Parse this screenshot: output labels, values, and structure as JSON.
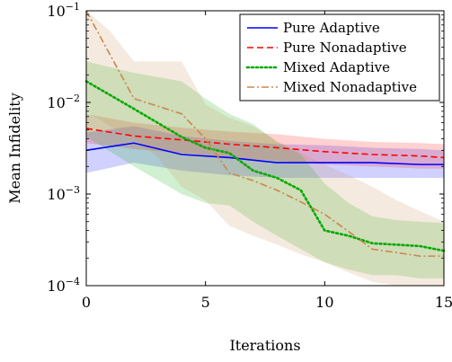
{
  "chart_data": {
    "type": "line",
    "xlabel": "Iterations",
    "ylabel": "Mean Infidelity",
    "xlim": [
      0,
      15
    ],
    "ylim": [
      0.0001,
      0.1
    ],
    "yscale": "log",
    "xticks": [
      0,
      5,
      10,
      15
    ],
    "xtick_labels": [
      "0",
      "5",
      "10",
      "15"
    ],
    "yticks": [
      0.0001,
      0.001,
      0.01,
      0.1
    ],
    "ytick_labels": [
      {
        "base": "10",
        "exp": "−4"
      },
      {
        "base": "10",
        "exp": "−3"
      },
      {
        "base": "10",
        "exp": "−2"
      },
      {
        "base": "10",
        "exp": "−1"
      }
    ],
    "grid": false,
    "legend_position": "top-right",
    "series": [
      {
        "name": "Pure Adaptive",
        "color": "#0000ff",
        "dash": "solid",
        "x": [
          0,
          2,
          4,
          6,
          8,
          10,
          12,
          14,
          15
        ],
        "y": [
          0.003,
          0.0036,
          0.0027,
          0.0025,
          0.0022,
          0.0022,
          0.0022,
          0.0021,
          0.0021
        ],
        "band_lower": [
          0.0017,
          0.0022,
          0.0018,
          0.0016,
          0.0015,
          0.0015,
          0.0015,
          0.0015,
          0.0015
        ],
        "band_upper": [
          0.0047,
          0.0055,
          0.0043,
          0.0038,
          0.0035,
          0.0034,
          0.0032,
          0.0031,
          0.003
        ]
      },
      {
        "name": "Pure Nonadaptive",
        "color": "#ff0000",
        "dash": "dashed",
        "x": [
          0,
          2,
          4,
          6,
          8,
          10,
          12,
          14,
          15
        ],
        "y": [
          0.0052,
          0.0043,
          0.0039,
          0.0035,
          0.0032,
          0.0029,
          0.0027,
          0.0026,
          0.0025
        ],
        "band_lower": [
          0.0036,
          0.0031,
          0.0028,
          0.0025,
          0.0023,
          0.0021,
          0.002,
          0.0019,
          0.0019
        ],
        "band_upper": [
          0.0075,
          0.006,
          0.0053,
          0.0048,
          0.0045,
          0.004,
          0.0037,
          0.0036,
          0.0035
        ]
      },
      {
        "name": "Mixed Adaptive",
        "color": "#00aa00",
        "dash": "dotted",
        "x": [
          0,
          2,
          4,
          5,
          6,
          7,
          8,
          9,
          10,
          11,
          12,
          13,
          14,
          15
        ],
        "y": [
          0.017,
          0.0085,
          0.0042,
          0.0032,
          0.0028,
          0.0018,
          0.0015,
          0.0011,
          0.0004,
          0.00035,
          0.00029,
          0.00028,
          0.00027,
          0.00024
        ],
        "band_lower": [
          0.0042,
          0.002,
          0.001,
          0.0008,
          0.00075,
          0.0005,
          0.00035,
          0.00025,
          0.00018,
          0.00015,
          0.00013,
          0.00013,
          0.00012,
          0.00012
        ],
        "band_upper": [
          0.028,
          0.021,
          0.017,
          0.011,
          0.0075,
          0.0058,
          0.0037,
          0.0027,
          0.0013,
          0.0008,
          0.00057,
          0.00052,
          0.0005,
          0.00048
        ]
      },
      {
        "name": "Mixed Nonadaptive",
        "color": "#c8894b",
        "dash": "dashdot",
        "x": [
          0,
          1,
          2,
          3,
          4,
          5,
          6,
          7,
          8,
          9,
          10,
          11,
          12,
          13,
          14,
          15
        ],
        "y": [
          0.1,
          0.033,
          0.011,
          0.0091,
          0.0075,
          0.004,
          0.0017,
          0.0014,
          0.0011,
          0.00082,
          0.0006,
          0.00039,
          0.00025,
          0.00023,
          0.00021,
          0.00021
        ],
        "band_lower": [
          0.008,
          0.0055,
          0.004,
          0.0025,
          0.0012,
          0.00085,
          0.00045,
          0.00035,
          0.00028,
          0.00022,
          0.00018,
          0.00014,
          0.00011,
          0.0001,
          0.0001,
          0.0001
        ],
        "band_upper": [
          0.1,
          0.06,
          0.028,
          0.028,
          0.028,
          0.0095,
          0.0068,
          0.0055,
          0.0038,
          0.0028,
          0.0021,
          0.0016,
          0.0012,
          0.00086,
          0.00065,
          0.0005
        ]
      }
    ]
  }
}
